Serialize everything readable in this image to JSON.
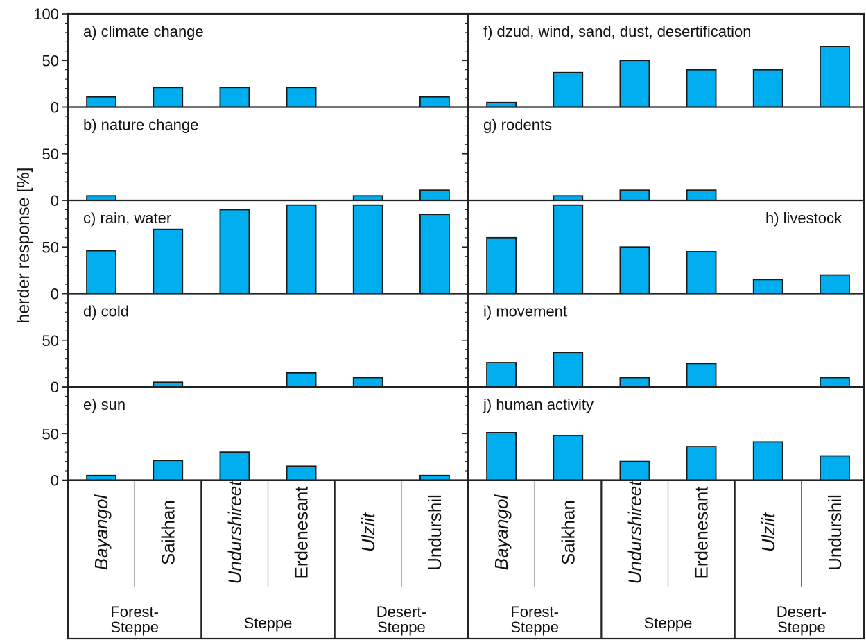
{
  "chart_data": {
    "type": "bar",
    "ylabel": "herder response [%]",
    "ylim": [
      0,
      100
    ],
    "yticks": [
      "100",
      "50",
      "0"
    ],
    "bar_color": "#00aeef",
    "categories": [
      "Bayangol",
      "Saikhan",
      "Undurshireet",
      "Erdenesant",
      "Ulziit",
      "Undurshil"
    ],
    "italic_categories": [
      "Bayangol",
      "Undurshireet",
      "Ulziit"
    ],
    "zones": [
      "Forest-\nSteppe",
      "Steppe",
      "Desert-\nSteppe"
    ],
    "panels": [
      {
        "label": "a) climate change",
        "values": [
          11,
          21,
          21,
          21,
          0,
          11
        ]
      },
      {
        "label": "b) nature change",
        "values": [
          5,
          0,
          0,
          0,
          5,
          11
        ]
      },
      {
        "label": "c) rain, water",
        "values": [
          46,
          69,
          90,
          95,
          95,
          85
        ]
      },
      {
        "label": "d) cold",
        "values": [
          0,
          5,
          0,
          15,
          10,
          0
        ]
      },
      {
        "label": "e) sun",
        "values": [
          5,
          21,
          30,
          15,
          0,
          5
        ]
      },
      {
        "label": "f) dzud, wind, sand, dust, desertification",
        "values": [
          5,
          37,
          50,
          40,
          40,
          65
        ]
      },
      {
        "label": "g) rodents",
        "values": [
          0,
          5,
          11,
          11,
          0,
          0
        ]
      },
      {
        "label": "h) livestock",
        "values": [
          60,
          95,
          50,
          45,
          15,
          20
        ]
      },
      {
        "label": "i) movement",
        "values": [
          26,
          37,
          10,
          25,
          0,
          10
        ]
      },
      {
        "label": "j) human activity",
        "values": [
          51,
          48,
          20,
          36,
          41,
          26
        ]
      }
    ]
  }
}
